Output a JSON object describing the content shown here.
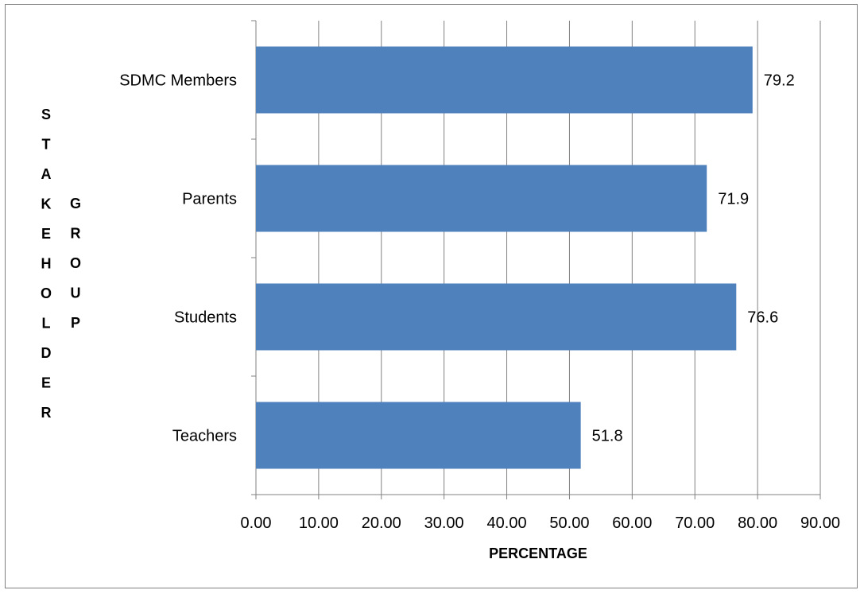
{
  "chart_data": {
    "type": "bar",
    "orientation": "horizontal",
    "categories": [
      "SDMC Members",
      "Parents",
      "Students",
      "Teachers"
    ],
    "values": [
      79.2,
      71.9,
      76.6,
      51.8
    ],
    "value_labels": [
      "79.2",
      "71.9",
      "76.6",
      "51.8"
    ],
    "xlabel": "PERCENTAGE",
    "ylabel_columns": [
      "STAKEHOLDER",
      "GROUP"
    ],
    "xlim": [
      0,
      90
    ],
    "x_ticks": [
      "0.00",
      "10.00",
      "20.00",
      "30.00",
      "40.00",
      "50.00",
      "60.00",
      "70.00",
      "80.00",
      "90.00"
    ],
    "grid": "vertical",
    "legend": "none",
    "bar_color": "#4F81BD",
    "grid_color": "#808080"
  }
}
